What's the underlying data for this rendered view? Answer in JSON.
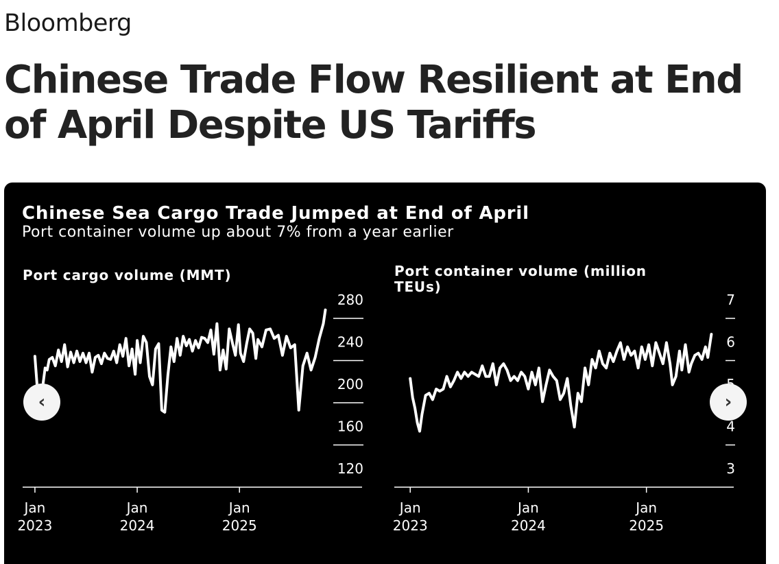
{
  "brand": "Bloomberg",
  "headline": "Chinese Trade Flow Resilient at End of April Despite US Tariffs",
  "card": {
    "title": "Chinese Sea Cargo Trade Jumped at End of April",
    "subtitle": "Port container volume up about 7% from a year earlier",
    "prev_icon": "chevron-left-icon",
    "next_icon": "chevron-right-icon",
    "prev_glyph": "‹",
    "next_glyph": "›"
  },
  "chart_data": [
    {
      "type": "line",
      "title": "Port cargo volume (MMT)",
      "ylim": [
        120,
        280
      ],
      "yticks": [
        280,
        240,
        200,
        160,
        120
      ],
      "xticks": [
        {
          "label": "Jan\n2023",
          "year": 2023.0
        },
        {
          "label": "Jan\n2024",
          "year": 2024.0
        },
        {
          "label": "Jan\n2025",
          "year": 2025.0
        }
      ],
      "xrange": [
        2022.9,
        2025.85
      ],
      "line_color": "#ffffff",
      "series": [
        {
          "x": [
            2023.0,
            2023.02,
            2023.04,
            2023.06,
            2023.08,
            2023.1,
            2023.12,
            2023.14,
            2023.17,
            2023.2,
            2023.23,
            2023.26,
            2023.29,
            2023.32,
            2023.35,
            2023.38,
            2023.41,
            2023.44,
            2023.47,
            2023.5,
            2023.53,
            2023.56,
            2023.59,
            2023.62,
            2023.65,
            2023.68,
            2023.71,
            2023.74,
            2023.77,
            2023.8,
            2023.83,
            2023.86,
            2023.89,
            2023.92,
            2023.95,
            2023.98,
            2024.0,
            2024.03,
            2024.06,
            2024.09,
            2024.12,
            2024.15,
            2024.18,
            2024.21,
            2024.24,
            2024.27,
            2024.3,
            2024.33,
            2024.36,
            2024.39,
            2024.42,
            2024.45,
            2024.48,
            2024.51,
            2024.54,
            2024.57,
            2024.6,
            2024.63,
            2024.66,
            2024.69,
            2024.72,
            2024.75,
            2024.78,
            2024.81,
            2024.84,
            2024.87,
            2024.9,
            2024.93,
            2024.96,
            2024.99,
            2025.01,
            2025.04,
            2025.07,
            2025.1,
            2025.13,
            2025.16,
            2025.19,
            2025.22,
            2025.25,
            2025.28,
            2025.31,
            2025.33
          ],
          "y": [
            231,
            205,
            176,
            185,
            205,
            220,
            218,
            228,
            230,
            222,
            237,
            226,
            242,
            221,
            235,
            225,
            236,
            226,
            234,
            225,
            234,
            216,
            230,
            232,
            224,
            234,
            229,
            228,
            236,
            225,
            242,
            231,
            248,
            222,
            238,
            214,
            246,
            225,
            250,
            244,
            212,
            204,
            238,
            243,
            180,
            178,
            213,
            240,
            226,
            248,
            232,
            250,
            241,
            247,
            236,
            246,
            239,
            249,
            248,
            244,
            256,
            233,
            262,
            218,
            237,
            219,
            257,
            244,
            232,
            261,
            234,
            226,
            243,
            257,
            253,
            229,
            258,
            247,
            239,
            256,
            236,
            226
          ],
          "y_tail_comment": "",
          "tail_x": [
            2025.18,
            2025.22,
            2025.26,
            2025.3,
            2025.34,
            2025.38,
            2025.42,
            2025.46,
            2025.5,
            2025.54,
            2025.58,
            2025.62,
            2025.66,
            2025.7,
            2025.74,
            2025.78,
            2025.82,
            2025.84
          ],
          "tail_y": [
            247,
            240,
            256,
            257,
            248,
            251,
            232,
            250,
            239,
            242,
            180,
            222,
            234,
            218,
            230,
            248,
            262,
            275
          ]
        }
      ]
    },
    {
      "type": "line",
      "title": "Port container volume (million TEUs)",
      "ylim": [
        3,
        7
      ],
      "yticks": [
        7,
        6,
        5,
        4,
        3
      ],
      "xticks": [
        {
          "label": "Jan\n2023",
          "year": 2023.0
        },
        {
          "label": "Jan\n2024",
          "year": 2024.0
        },
        {
          "label": "Jan\n2025",
          "year": 2025.0
        }
      ],
      "xrange": [
        2022.9,
        2025.6
      ],
      "line_color": "#ffffff",
      "series": [
        {
          "x": [
            2023.0,
            2023.02,
            2023.04,
            2023.06,
            2023.08,
            2023.1,
            2023.13,
            2023.16,
            2023.19,
            2023.22,
            2023.25,
            2023.28,
            2023.31,
            2023.34,
            2023.37,
            2023.4,
            2023.43,
            2023.46,
            2023.49,
            2023.52,
            2023.55,
            2023.58,
            2023.61,
            2023.64,
            2023.67,
            2023.7,
            2023.73,
            2023.76,
            2023.79,
            2023.82,
            2023.85,
            2023.88,
            2023.91,
            2023.94,
            2023.97,
            2024.0,
            2024.03,
            2024.06,
            2024.09,
            2024.12,
            2024.15,
            2024.18,
            2024.21,
            2024.24,
            2024.27,
            2024.3,
            2024.33,
            2024.36,
            2024.39,
            2024.42,
            2024.45,
            2024.48,
            2024.51,
            2024.54,
            2024.57,
            2024.6,
            2024.63,
            2024.66,
            2024.69,
            2024.72,
            2024.75,
            2024.78,
            2024.81,
            2024.84,
            2024.87,
            2024.9,
            2024.93,
            2024.96,
            2024.99,
            2025.02,
            2025.05,
            2025.08,
            2025.11,
            2025.14,
            2025.17,
            2025.2,
            2025.23,
            2025.26,
            2025.29,
            2025.32,
            2025.35,
            2025.38
          ],
          "y": [
            5.25,
            4.8,
            4.55,
            4.2,
            4.0,
            4.4,
            4.85,
            4.9,
            4.75,
            5.0,
            4.95,
            5.0,
            5.3,
            5.05,
            5.2,
            5.4,
            5.25,
            5.4,
            5.3,
            5.4,
            5.35,
            5.3,
            5.55,
            5.3,
            5.3,
            5.6,
            5.1,
            5.5,
            5.6,
            5.45,
            5.2,
            5.3,
            5.2,
            5.4,
            5.3,
            5.0,
            5.4,
            5.1,
            5.5,
            4.7,
            5.1,
            5.45,
            5.3,
            5.2,
            4.75,
            4.9,
            5.25,
            4.6,
            4.1,
            4.9,
            4.7,
            5.5,
            5.1,
            5.7,
            5.5,
            5.9,
            5.6,
            5.5,
            5.85,
            5.65,
            5.9,
            6.1,
            5.7,
            6.0,
            5.8,
            5.9,
            5.5,
            6.0,
            5.7,
            6.05,
            5.55,
            6.1,
            5.85,
            5.6,
            6.1,
            5.5,
            5.8,
            6.0,
            5.4,
            5.9,
            6.1,
            5.5
          ],
          "tail_x": [
            2025.2,
            2025.22,
            2025.25,
            2025.28,
            2025.3,
            2025.33,
            2025.36,
            2025.38,
            2025.41,
            2025.44,
            2025.47,
            2025.5,
            2025.52,
            2025.55
          ],
          "tail_y": [
            5.6,
            5.1,
            5.3,
            5.9,
            5.45,
            6.05,
            5.4,
            5.6,
            5.8,
            5.85,
            5.7,
            6.0,
            5.75,
            6.3
          ]
        }
      ]
    }
  ]
}
